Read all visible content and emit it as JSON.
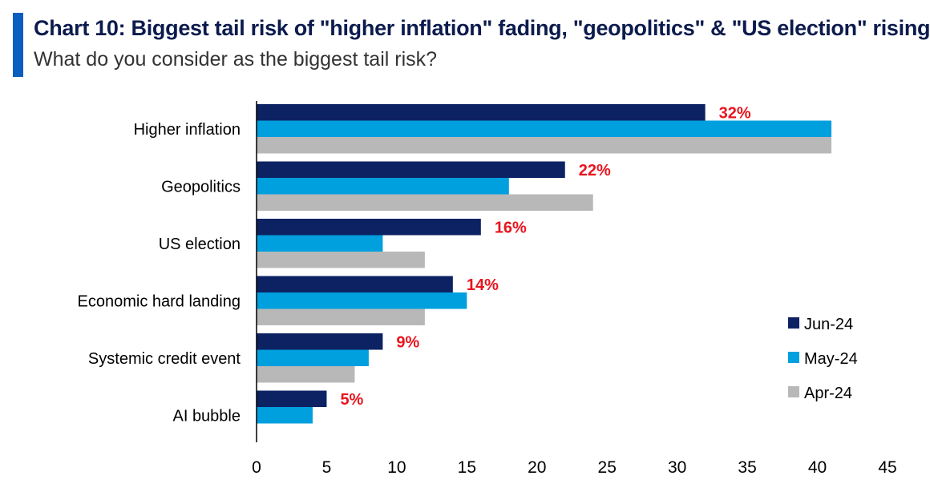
{
  "header": {
    "title": "Chart 10: Biggest tail risk of \"higher inflation\" fading, \"geopolitics\" & \"US election\" rising",
    "subtitle": "What do you consider as the biggest tail risk?"
  },
  "chart_data": {
    "type": "bar",
    "orientation": "horizontal",
    "title": "Chart 10: Biggest tail risk of \"higher inflation\" fading, \"geopolitics\" & \"US election\" rising",
    "subtitle": "What do you consider as the biggest tail risk?",
    "xlabel": "",
    "ylabel": "",
    "xlim": [
      0,
      45
    ],
    "xticks": [
      0,
      5,
      10,
      15,
      20,
      25,
      30,
      35,
      40,
      45
    ],
    "grid": false,
    "legend_position": "bottom-right",
    "categories": [
      "Higher inflation",
      "Geopolitics",
      "US election",
      "Economic hard landing",
      "Systemic credit event",
      "AI bubble"
    ],
    "series": [
      {
        "name": "Jun-24",
        "color": "#0d2263",
        "values": [
          32,
          22,
          16,
          14,
          9,
          5
        ]
      },
      {
        "name": "May-24",
        "color": "#009fde",
        "values": [
          41,
          18,
          9,
          15,
          8,
          4
        ]
      },
      {
        "name": "Apr-24",
        "color": "#b8b8b8",
        "values": [
          41,
          24,
          12,
          12,
          7,
          null
        ]
      }
    ],
    "data_labels": [
      "32%",
      "22%",
      "16%",
      "14%",
      "9%",
      "5%"
    ],
    "data_label_color": "#e8141e"
  }
}
